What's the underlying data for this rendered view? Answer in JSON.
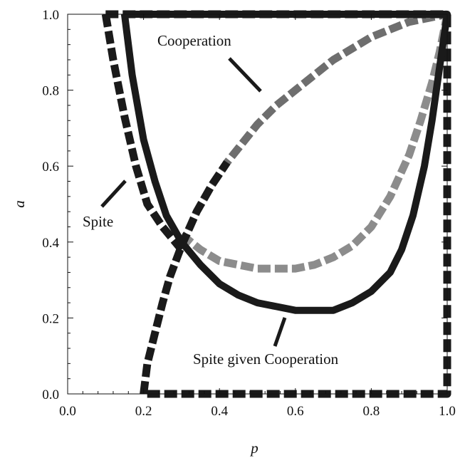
{
  "chart_data": {
    "type": "line",
    "title": "",
    "xlabel": "p",
    "ylabel": "a",
    "xlim": [
      0.0,
      1.0
    ],
    "ylim": [
      0.0,
      1.0
    ],
    "xticks": [
      "0.0",
      "0.2",
      "0.4",
      "0.6",
      "0.8",
      "1.0"
    ],
    "yticks": [
      "0.0",
      "0.2",
      "0.4",
      "0.6",
      "0.8",
      "1.0"
    ],
    "grid": false,
    "annotations": [
      "Cooperation",
      "Spite",
      "Spite given Cooperation"
    ],
    "colors": {
      "dark": "#1a1a1a",
      "gray": "#6e6e6e",
      "light_gray": "#8c8c8c"
    },
    "series": [
      {
        "style": "solid",
        "x": [
          0.15,
          0.17,
          0.2,
          0.23,
          0.26,
          0.3,
          0.35,
          0.4,
          0.45,
          0.5,
          0.55,
          0.6,
          0.65,
          0.7,
          0.75,
          0.8,
          0.85,
          0.88,
          0.91,
          0.94,
          0.96,
          0.98,
          0.99,
          1.0,
          0.15
        ],
        "y": [
          1.0,
          0.84,
          0.67,
          0.56,
          0.47,
          0.4,
          0.34,
          0.29,
          0.26,
          0.24,
          0.23,
          0.22,
          0.22,
          0.22,
          0.24,
          0.27,
          0.32,
          0.38,
          0.47,
          0.6,
          0.72,
          0.86,
          0.93,
          1.0,
          1.0
        ]
      },
      {
        "style": "dashed-dark",
        "x": [
          0.1,
          0.12,
          0.15,
          0.18,
          0.21,
          0.25,
          0.3,
          1.0,
          1.0,
          0.2,
          0.21,
          0.23,
          0.25,
          0.27,
          0.3,
          0.34,
          0.38,
          0.42
        ],
        "y": [
          1.0,
          0.88,
          0.73,
          0.6,
          0.5,
          0.44,
          0.38,
          1.0,
          0.0,
          0.0,
          0.08,
          0.16,
          0.24,
          0.31,
          0.39,
          0.48,
          0.55,
          0.61
        ]
      },
      {
        "style": "dashed-gray",
        "x": [
          0.3,
          0.34,
          0.38,
          0.42,
          0.46,
          0.5,
          0.55,
          0.6,
          0.65,
          0.7,
          0.75,
          0.8,
          0.85,
          0.9,
          0.95,
          1.0
        ],
        "y": [
          0.39,
          0.48,
          0.55,
          0.61,
          0.66,
          0.71,
          0.76,
          0.8,
          0.84,
          0.88,
          0.91,
          0.94,
          0.96,
          0.98,
          0.99,
          1.0
        ]
      },
      {
        "style": "dashed-lightgray",
        "x": [
          0.3,
          0.35,
          0.4,
          0.45,
          0.5,
          0.55,
          0.6,
          0.65,
          0.7,
          0.75,
          0.8,
          0.85,
          0.9,
          0.93,
          0.96,
          0.98,
          1.0
        ],
        "y": [
          0.42,
          0.38,
          0.35,
          0.34,
          0.33,
          0.33,
          0.33,
          0.34,
          0.36,
          0.39,
          0.44,
          0.52,
          0.63,
          0.72,
          0.82,
          0.9,
          1.0
        ]
      }
    ]
  }
}
